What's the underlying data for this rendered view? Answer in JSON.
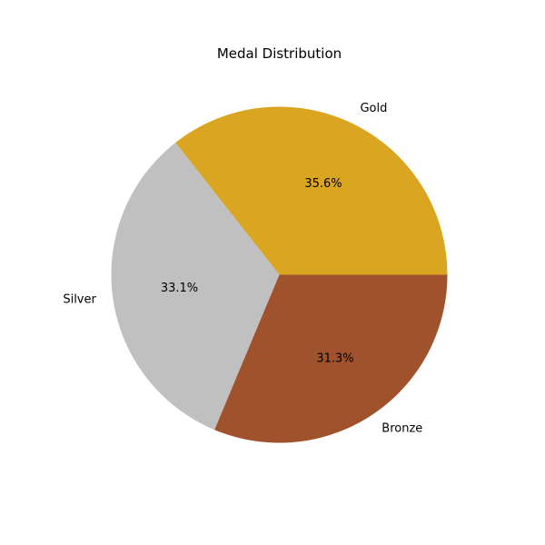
{
  "chart_data": {
    "type": "pie",
    "title": "Medal Distribution",
    "categories": [
      "Gold",
      "Silver",
      "Bronze"
    ],
    "values": [
      35.6,
      33.1,
      31.3
    ],
    "value_labels": [
      "35.6%",
      "33.1%",
      "31.3%"
    ],
    "colors": [
      "#daa520",
      "#c0c0c0",
      "#a0522d"
    ],
    "start_angle_deg": 0,
    "direction": "counterclockwise",
    "legend": "none"
  }
}
